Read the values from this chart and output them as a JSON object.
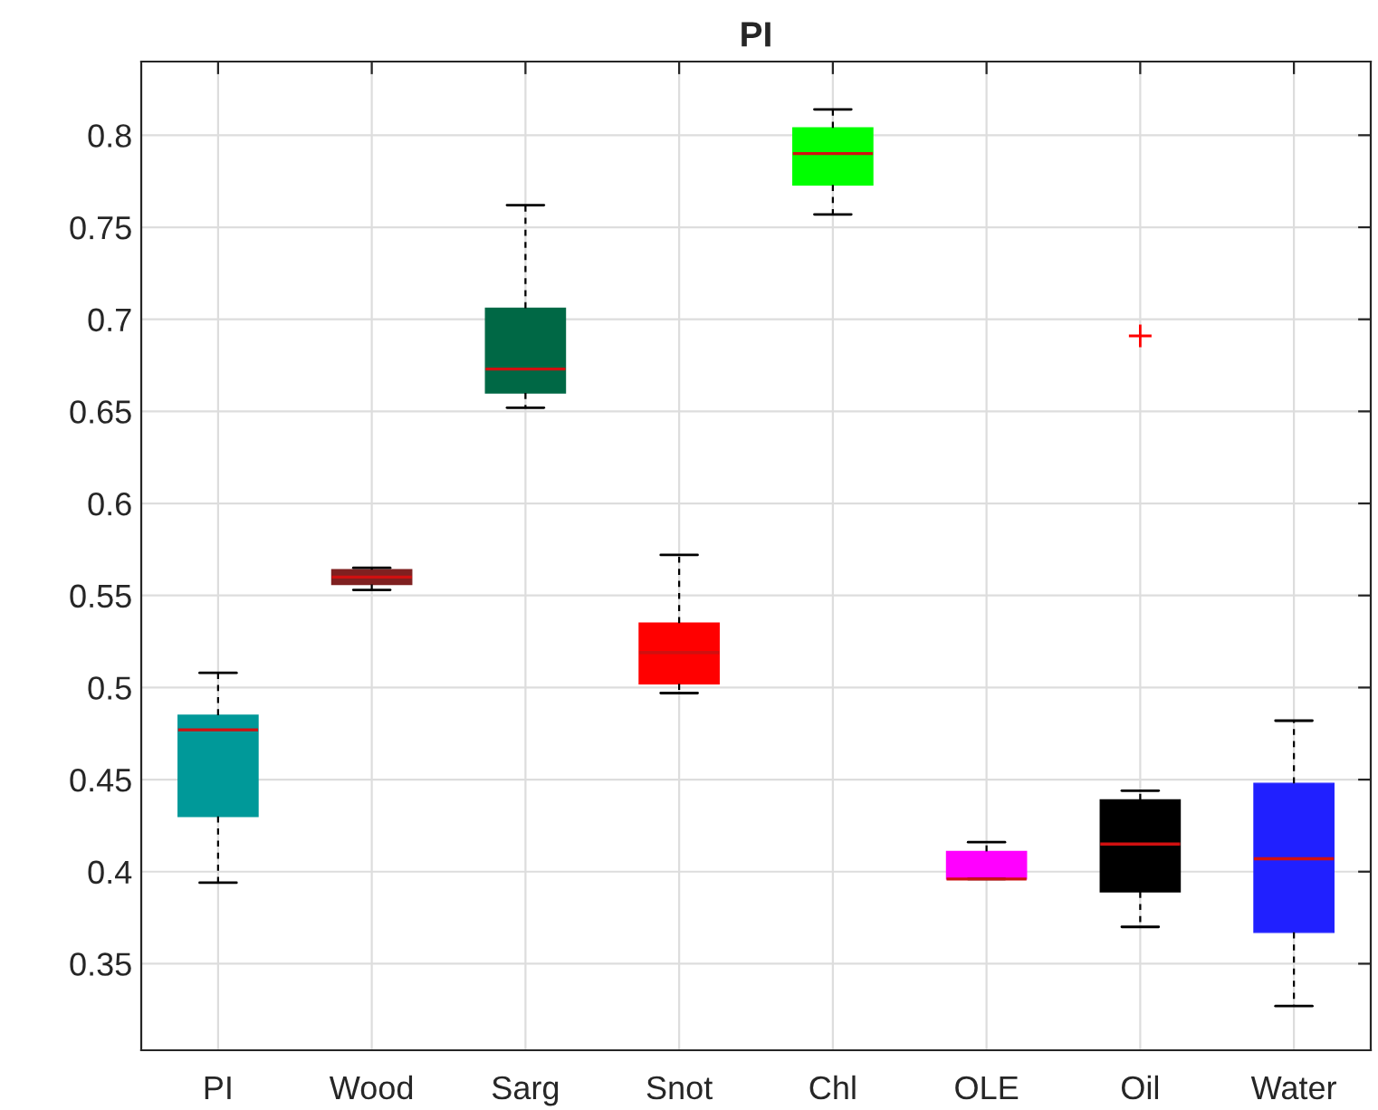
{
  "chart_data": {
    "type": "box",
    "title": "PI",
    "categories": [
      "PI",
      "Wood",
      "Sarg",
      "Snot",
      "Chl",
      "OLE",
      "Oil",
      "Water"
    ],
    "colors": [
      "#009999",
      "#7f2020",
      "#006845",
      "#ff0000",
      "#00ff00",
      "#ff00ff",
      "#000000",
      "#2020ff"
    ],
    "boxes": [
      {
        "low": 0.394,
        "q1": 0.43,
        "median": 0.477,
        "q3": 0.485,
        "high": 0.508
      },
      {
        "low": 0.553,
        "q1": 0.556,
        "median": 0.56,
        "q3": 0.564,
        "high": 0.565
      },
      {
        "low": 0.652,
        "q1": 0.66,
        "median": 0.673,
        "q3": 0.706,
        "high": 0.762
      },
      {
        "low": 0.497,
        "q1": 0.502,
        "median": 0.519,
        "q3": 0.535,
        "high": 0.572
      },
      {
        "low": 0.757,
        "q1": 0.773,
        "median": 0.79,
        "q3": 0.804,
        "high": 0.814
      },
      {
        "low": 0.396,
        "q1": 0.396,
        "median": 0.396,
        "q3": 0.411,
        "high": 0.416
      },
      {
        "low": 0.37,
        "q1": 0.389,
        "median": 0.415,
        "q3": 0.439,
        "high": 0.444,
        "outliers": [
          0.691
        ]
      },
      {
        "low": 0.327,
        "q1": 0.367,
        "median": 0.407,
        "q3": 0.448,
        "high": 0.482
      }
    ],
    "ylim": [
      0.303,
      0.84
    ],
    "yticks": [
      0.35,
      0.4,
      0.45,
      0.5,
      0.55,
      0.6,
      0.65,
      0.7,
      0.75,
      0.8
    ],
    "grid": true
  }
}
